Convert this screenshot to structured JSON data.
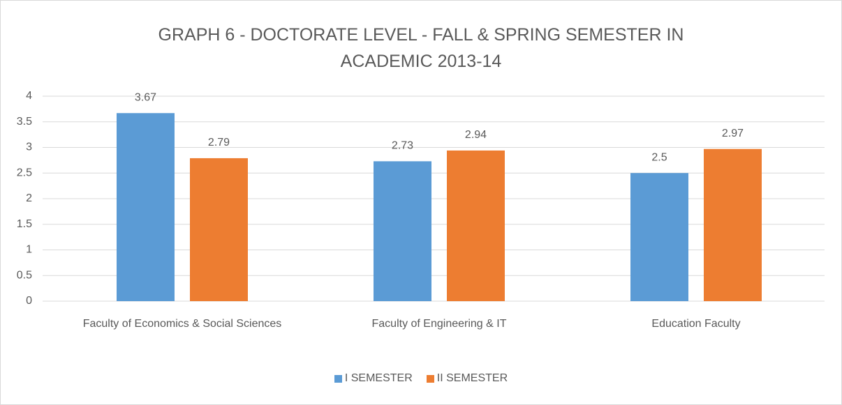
{
  "chart_data": {
    "type": "bar",
    "title": "GRAPH 6 - DOCTORATE LEVEL - FALL & SPRING SEMESTER IN ACADEMIC 2013-14",
    "categories": [
      "Faculty of Economics & Social Sciences",
      "Faculty of Engineering & IT",
      "Education Faculty"
    ],
    "series": [
      {
        "name": "I SEMESTER",
        "color": "#5b9bd5",
        "values": [
          3.67,
          2.73,
          2.5
        ]
      },
      {
        "name": "II SEMESTER",
        "color": "#ed7d31",
        "values": [
          2.79,
          2.94,
          2.97
        ]
      }
    ],
    "ylim": [
      0,
      4
    ],
    "yticks": [
      0,
      0.5,
      1,
      1.5,
      2,
      2.5,
      3,
      3.5,
      4
    ],
    "grid": true,
    "legend": "bottom"
  }
}
